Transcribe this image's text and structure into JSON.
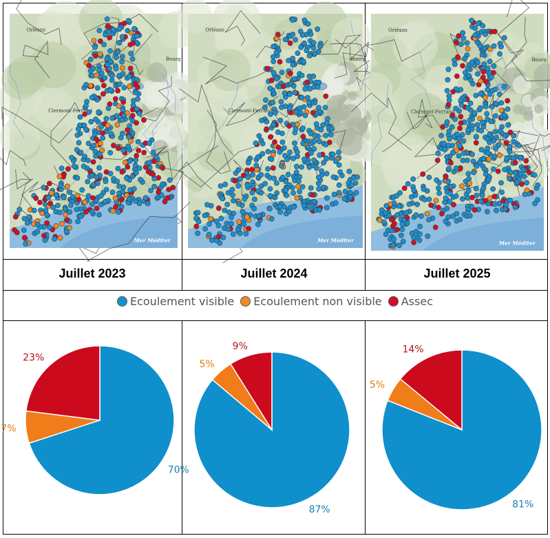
{
  "chart_data": [
    {
      "type": "pie",
      "title": "Juillet 2023",
      "categories": [
        "Ecoulement visible",
        "Ecoulement non visible",
        "Assec"
      ],
      "values": [
        70,
        7,
        23
      ],
      "labels": [
        "70%",
        "7%",
        "23%"
      ]
    },
    {
      "type": "pie",
      "title": "Juillet 2024",
      "categories": [
        "Ecoulement visible",
        "Ecoulement non visible",
        "Assec"
      ],
      "values": [
        87,
        5,
        9
      ],
      "labels": [
        "87%",
        "5%",
        "9%"
      ]
    },
    {
      "type": "pie",
      "title": "Juillet 2025",
      "categories": [
        "Ecoulement visible",
        "Ecoulement non visible",
        "Assec"
      ],
      "values": [
        81,
        5,
        14
      ],
      "labels": [
        "81%",
        "5%",
        "14%"
      ]
    }
  ],
  "legend": [
    {
      "label": "Ecoulement visible",
      "color": "#1a8fd0"
    },
    {
      "label": "Ecoulement non visible",
      "color": "#f08a24"
    },
    {
      "label": "Assec",
      "color": "#d0102a"
    }
  ],
  "colors": {
    "visible": "#0f8fcc",
    "non_visible": "#f07c1a",
    "assec": "#cc0a1e",
    "label_visible": "#1a7fb3",
    "label_non_visible": "#e07b12",
    "label_assec": "#b5121b"
  },
  "map_labels": {
    "orleans": "Orléans",
    "bourg": "Bourg",
    "clermont": "Clermont-Ferrand",
    "mer": "Mer Méditer"
  }
}
